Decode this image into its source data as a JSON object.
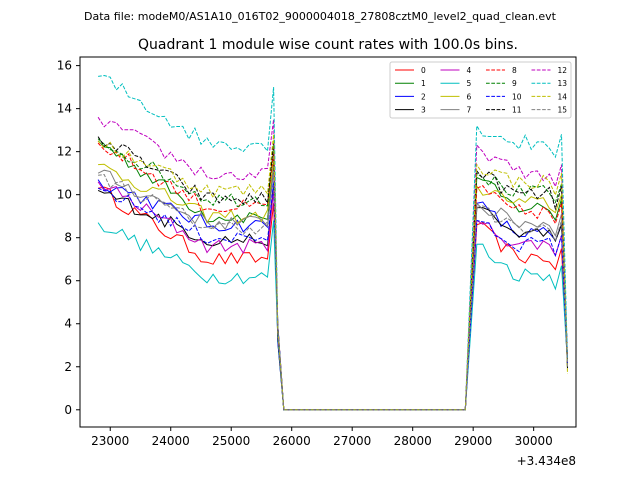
{
  "header": {
    "data_file": "Data file: modeM0/AS1A10_016T02_9000004018_27808cztM0_level2_quad_clean.evt"
  },
  "chart_data": {
    "type": "line",
    "title": "Quadrant 1 module wise count rates with 100.0s bins.",
    "xlabel": "",
    "ylabel": "",
    "x_offset_label": "+3.434e8",
    "xlim": [
      22500,
      30700
    ],
    "ylim": [
      -0.8,
      16.4
    ],
    "xticks": [
      23000,
      24000,
      25000,
      26000,
      27000,
      28000,
      29000,
      30000
    ],
    "xtick_labels": [
      "23000",
      "24000",
      "25000",
      "26000",
      "27000",
      "28000",
      "29000",
      "30000"
    ],
    "yticks": [
      0,
      2,
      4,
      6,
      8,
      10,
      12,
      14,
      16
    ],
    "ytick_labels": [
      "0",
      "2",
      "4",
      "6",
      "8",
      "10",
      "12",
      "14",
      "16"
    ],
    "legend_position": "upper-right",
    "legend_columns": 4,
    "segments": {
      "seg1_start": 22800,
      "seg1_end": 25700,
      "gap_first": 25870,
      "gap_last": 28960,
      "seg2_start": 29060,
      "seg2_end": 30460,
      "final_x": 30560,
      "final_y": 2.0,
      "bin": 100
    },
    "series": [
      {
        "name": "0",
        "color": "#ff0000",
        "dash": "solid",
        "level1": 7.0,
        "level2": 7.1,
        "start1": 10.3,
        "start2": 8.6,
        "noise": 0.35
      },
      {
        "name": "1",
        "color": "#008000",
        "dash": "solid",
        "level1": 9.0,
        "level2": 9.4,
        "start1": 12.5,
        "start2": 10.8,
        "noise": 0.35
      },
      {
        "name": "2",
        "color": "#0000ff",
        "dash": "solid",
        "level1": 8.6,
        "level2": 8.2,
        "start1": 10.7,
        "start2": 9.6,
        "noise": 0.35
      },
      {
        "name": "3",
        "color": "#000000",
        "dash": "solid",
        "level1": 7.9,
        "level2": 8.2,
        "start1": 10.2,
        "start2": 9.4,
        "noise": 0.35
      },
      {
        "name": "4",
        "color": "#bf00bf",
        "dash": "solid",
        "level1": 7.6,
        "level2": 7.7,
        "start1": 10.6,
        "start2": 8.8,
        "noise": 0.35
      },
      {
        "name": "5",
        "color": "#00bfbf",
        "dash": "solid",
        "level1": 6.2,
        "level2": 6.3,
        "start1": 8.7,
        "start2": 7.7,
        "noise": 0.35
      },
      {
        "name": "6",
        "color": "#bfbf00",
        "dash": "solid",
        "level1": 9.0,
        "level2": 9.6,
        "start1": 11.4,
        "start2": 10.4,
        "noise": 0.35
      },
      {
        "name": "7",
        "color": "#808080",
        "dash": "solid",
        "level1": 8.7,
        "level2": 8.7,
        "start1": 11.0,
        "start2": 9.6,
        "noise": 0.35
      },
      {
        "name": "8",
        "color": "#ff0000",
        "dash": "dashed",
        "level1": 9.4,
        "level2": 9.2,
        "start1": 12.4,
        "start2": 10.3,
        "noise": 0.35
      },
      {
        "name": "9",
        "color": "#008000",
        "dash": "dashed",
        "level1": 9.8,
        "level2": 10.1,
        "start1": 12.6,
        "start2": 11.0,
        "noise": 0.35
      },
      {
        "name": "10",
        "color": "#0000ff",
        "dash": "dashed",
        "level1": 8.0,
        "level2": 7.7,
        "start1": 10.3,
        "start2": 8.8,
        "noise": 0.35
      },
      {
        "name": "11",
        "color": "#000000",
        "dash": "dashed",
        "level1": 9.8,
        "level2": 10.0,
        "start1": 12.7,
        "start2": 11.1,
        "noise": 0.35
      },
      {
        "name": "12",
        "color": "#bf00bf",
        "dash": "dashed",
        "level1": 10.9,
        "level2": 11.0,
        "start1": 13.6,
        "start2": 12.3,
        "noise": 0.35
      },
      {
        "name": "13",
        "color": "#00bfbf",
        "dash": "dashed",
        "level1": 12.4,
        "level2": 12.4,
        "start1": 15.5,
        "start2": 13.2,
        "noise": 0.4
      },
      {
        "name": "14",
        "color": "#bfbf00",
        "dash": "dashed",
        "level1": 10.2,
        "level2": 10.6,
        "start1": 12.5,
        "start2": 11.4,
        "noise": 0.35
      },
      {
        "name": "15",
        "color": "#808080",
        "dash": "dashed",
        "level1": 8.5,
        "level2": 8.4,
        "start1": 10.9,
        "start2": 9.4,
        "noise": 0.35
      }
    ]
  }
}
